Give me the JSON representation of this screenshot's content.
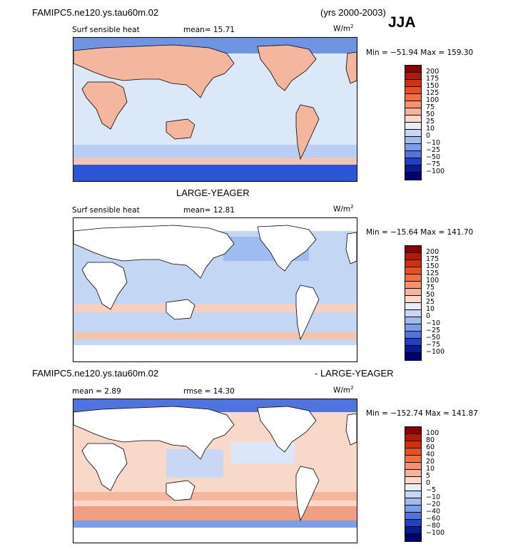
{
  "header": {
    "case_name": "FAMIPC5.ne120.ys.tau60m.02",
    "years": "(yrs 2000-2003)",
    "season": "JJA",
    "middle_title": "LARGE-YEAGER",
    "diff_left": "FAMIPC5.ne120.ys.tau60m.02",
    "diff_right": "- LARGE-YEAGER"
  },
  "panels": [
    {
      "variable": "Surf sensible heat",
      "stat1": "mean=  15.71",
      "units": "W/m",
      "units_exp": "2",
      "minmax": "Min = −51.94 Max = 159.30",
      "ocean_fill": "#dbe8f8",
      "land_fill": "#f4b69c",
      "cbar_labels": [
        "200",
        "175",
        "150",
        "125",
        "100",
        "75",
        "50",
        "25",
        "10",
        "0",
        "−10",
        "−25",
        "−50",
        "−75",
        "−100"
      ]
    },
    {
      "variable": "Surf sensible heat",
      "stat1": "mean=  12.81",
      "units": "W/m",
      "units_exp": "2",
      "minmax": "Min = −15.64 Max = 141.70",
      "ocean_fill": "#c3d6f4",
      "land_fill": "#ffffff",
      "cbar_labels": [
        "200",
        "175",
        "150",
        "125",
        "100",
        "75",
        "50",
        "25",
        "10",
        "0",
        "−10",
        "−25",
        "−50",
        "−75",
        "−100"
      ]
    },
    {
      "stat1": "mean =   2.89",
      "stat2": "rmse =  14.30",
      "units": "W/m",
      "units_exp": "2",
      "minmax": "Min = −152.74 Max = 141.87",
      "ocean_fill": "#f8d8c8",
      "land_fill": "#ffffff",
      "cbar_labels": [
        "100",
        "80",
        "60",
        "40",
        "20",
        "10",
        "5",
        "0",
        "−5",
        "−10",
        "−20",
        "−40",
        "−60",
        "−80",
        "−100"
      ]
    }
  ],
  "colorbar_colors": [
    "#8b0000",
    "#b01a0a",
    "#d2300f",
    "#e8501f",
    "#f07040",
    "#f59070",
    "#f8b49a",
    "#fbd8c8",
    "#e8eef8",
    "#c8d8f4",
    "#9fbcf0",
    "#7a9ee8",
    "#4f74e0",
    "#2040c8",
    "#0a1a90",
    "#000070"
  ]
}
